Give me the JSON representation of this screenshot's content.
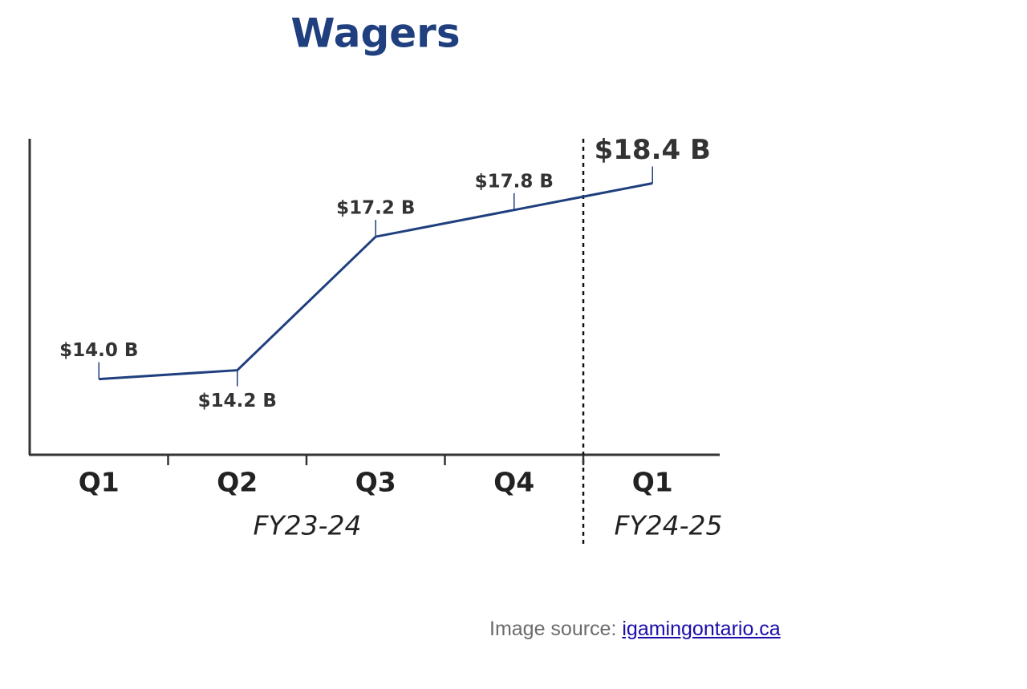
{
  "chart_data": {
    "type": "line",
    "title": "Wagers",
    "categories": [
      "Q1",
      "Q2",
      "Q3",
      "Q4",
      "Q1"
    ],
    "values": [
      14.0,
      14.2,
      17.2,
      17.8,
      18.4
    ],
    "value_labels": [
      "$14.0 B",
      "$14.2 B",
      "$17.2 B",
      "$17.8 B",
      "$18.4 B"
    ],
    "groups": [
      "FY23-24",
      "FY24-25"
    ],
    "color": "#1f3f7e",
    "ylim": [
      12.3,
      19.4
    ]
  },
  "source": {
    "text": "Image source:",
    "link": "igamingontario.ca"
  }
}
